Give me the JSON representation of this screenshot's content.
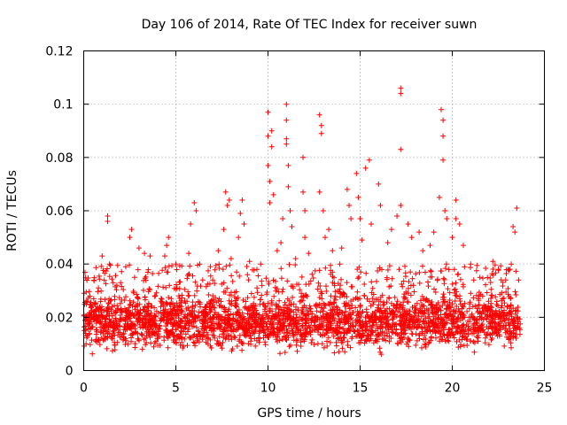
{
  "chart_data": {
    "type": "scatter",
    "title": "Day 106 of 2014, Rate Of TEC Index for receiver suwn",
    "xlabel": "GPS time / hours",
    "ylabel": "ROTI / TECUs",
    "xlim": [
      0,
      25
    ],
    "ylim": [
      0,
      0.12
    ],
    "xticks": [
      0,
      5,
      10,
      15,
      20,
      25
    ],
    "xtick_labels": [
      "0",
      "5",
      "10",
      "15",
      "20",
      "25"
    ],
    "yticks": [
      0,
      0.02,
      0.04,
      0.06,
      0.08,
      0.1,
      0.12
    ],
    "ytick_labels": [
      "0",
      "0.02",
      "0.04",
      "0.06",
      "0.08",
      "0.1",
      "0.12"
    ],
    "grid": true,
    "marker": "+",
    "color": "#ff0000",
    "series": [
      {
        "name": "ROTI",
        "x_range": [
          0,
          23.7
        ],
        "baseline_range": [
          0.005,
          0.03
        ],
        "notable_points": [
          {
            "x": 0.2,
            "y": 0.026
          },
          {
            "x": 0.8,
            "y": 0.031
          },
          {
            "x": 1.0,
            "y": 0.043
          },
          {
            "x": 1.3,
            "y": 0.058
          },
          {
            "x": 1.3,
            "y": 0.056
          },
          {
            "x": 1.4,
            "y": 0.04
          },
          {
            "x": 2.0,
            "y": 0.033
          },
          {
            "x": 2.5,
            "y": 0.05
          },
          {
            "x": 2.6,
            "y": 0.053
          },
          {
            "x": 3.0,
            "y": 0.046
          },
          {
            "x": 3.3,
            "y": 0.044
          },
          {
            "x": 3.6,
            "y": 0.043
          },
          {
            "x": 4.4,
            "y": 0.043
          },
          {
            "x": 4.5,
            "y": 0.037
          },
          {
            "x": 4.5,
            "y": 0.047
          },
          {
            "x": 4.6,
            "y": 0.05
          },
          {
            "x": 5.0,
            "y": 0.04
          },
          {
            "x": 5.7,
            "y": 0.044
          },
          {
            "x": 5.8,
            "y": 0.055
          },
          {
            "x": 6.0,
            "y": 0.063
          },
          {
            "x": 6.1,
            "y": 0.06
          },
          {
            "x": 6.3,
            "y": 0.04
          },
          {
            "x": 7.0,
            "y": 0.034
          },
          {
            "x": 7.3,
            "y": 0.045
          },
          {
            "x": 7.6,
            "y": 0.053
          },
          {
            "x": 7.7,
            "y": 0.067
          },
          {
            "x": 7.8,
            "y": 0.062
          },
          {
            "x": 7.9,
            "y": 0.064
          },
          {
            "x": 8.0,
            "y": 0.042
          },
          {
            "x": 8.3,
            "y": 0.037
          },
          {
            "x": 8.4,
            "y": 0.05
          },
          {
            "x": 8.5,
            "y": 0.059
          },
          {
            "x": 8.6,
            "y": 0.064
          },
          {
            "x": 8.7,
            "y": 0.055
          },
          {
            "x": 9.0,
            "y": 0.041
          },
          {
            "x": 9.4,
            "y": 0.038
          },
          {
            "x": 9.6,
            "y": 0.04
          },
          {
            "x": 10.0,
            "y": 0.097
          },
          {
            "x": 10.0,
            "y": 0.088
          },
          {
            "x": 10.0,
            "y": 0.077
          },
          {
            "x": 10.1,
            "y": 0.071
          },
          {
            "x": 10.1,
            "y": 0.063
          },
          {
            "x": 10.2,
            "y": 0.09
          },
          {
            "x": 10.2,
            "y": 0.084
          },
          {
            "x": 10.3,
            "y": 0.066
          },
          {
            "x": 10.5,
            "y": 0.045
          },
          {
            "x": 10.7,
            "y": 0.048
          },
          {
            "x": 10.8,
            "y": 0.057
          },
          {
            "x": 11.0,
            "y": 0.1
          },
          {
            "x": 11.0,
            "y": 0.094
          },
          {
            "x": 11.0,
            "y": 0.087
          },
          {
            "x": 11.0,
            "y": 0.085
          },
          {
            "x": 11.1,
            "y": 0.077
          },
          {
            "x": 11.1,
            "y": 0.069
          },
          {
            "x": 11.2,
            "y": 0.06
          },
          {
            "x": 11.3,
            "y": 0.054
          },
          {
            "x": 11.5,
            "y": 0.042
          },
          {
            "x": 11.9,
            "y": 0.08
          },
          {
            "x": 11.9,
            "y": 0.067
          },
          {
            "x": 12.0,
            "y": 0.06
          },
          {
            "x": 12.0,
            "y": 0.05
          },
          {
            "x": 12.2,
            "y": 0.044
          },
          {
            "x": 12.8,
            "y": 0.096
          },
          {
            "x": 12.9,
            "y": 0.092
          },
          {
            "x": 12.9,
            "y": 0.089
          },
          {
            "x": 12.8,
            "y": 0.067
          },
          {
            "x": 13.0,
            "y": 0.06
          },
          {
            "x": 13.1,
            "y": 0.05
          },
          {
            "x": 13.3,
            "y": 0.053
          },
          {
            "x": 13.5,
            "y": 0.045
          },
          {
            "x": 13.9,
            "y": 0.04
          },
          {
            "x": 14.0,
            "y": 0.046
          },
          {
            "x": 14.3,
            "y": 0.068
          },
          {
            "x": 14.4,
            "y": 0.062
          },
          {
            "x": 14.5,
            "y": 0.057
          },
          {
            "x": 14.8,
            "y": 0.074
          },
          {
            "x": 14.9,
            "y": 0.065
          },
          {
            "x": 15.0,
            "y": 0.057
          },
          {
            "x": 15.1,
            "y": 0.049
          },
          {
            "x": 15.3,
            "y": 0.076
          },
          {
            "x": 15.5,
            "y": 0.079
          },
          {
            "x": 15.6,
            "y": 0.055
          },
          {
            "x": 16.0,
            "y": 0.07
          },
          {
            "x": 16.1,
            "y": 0.062
          },
          {
            "x": 16.5,
            "y": 0.048
          },
          {
            "x": 16.7,
            "y": 0.053
          },
          {
            "x": 17.0,
            "y": 0.058
          },
          {
            "x": 17.2,
            "y": 0.106
          },
          {
            "x": 17.2,
            "y": 0.104
          },
          {
            "x": 17.2,
            "y": 0.083
          },
          {
            "x": 17.2,
            "y": 0.062
          },
          {
            "x": 17.6,
            "y": 0.055
          },
          {
            "x": 17.8,
            "y": 0.05
          },
          {
            "x": 18.2,
            "y": 0.052
          },
          {
            "x": 18.4,
            "y": 0.045
          },
          {
            "x": 18.8,
            "y": 0.047
          },
          {
            "x": 19.0,
            "y": 0.052
          },
          {
            "x": 19.3,
            "y": 0.065
          },
          {
            "x": 19.4,
            "y": 0.098
          },
          {
            "x": 19.5,
            "y": 0.094
          },
          {
            "x": 19.5,
            "y": 0.088
          },
          {
            "x": 19.5,
            "y": 0.079
          },
          {
            "x": 19.6,
            "y": 0.06
          },
          {
            "x": 19.7,
            "y": 0.057
          },
          {
            "x": 20.0,
            "y": 0.05
          },
          {
            "x": 20.2,
            "y": 0.064
          },
          {
            "x": 20.2,
            "y": 0.057
          },
          {
            "x": 20.4,
            "y": 0.055
          },
          {
            "x": 20.6,
            "y": 0.047
          },
          {
            "x": 21.0,
            "y": 0.04
          },
          {
            "x": 21.5,
            "y": 0.035
          },
          {
            "x": 22.2,
            "y": 0.041
          },
          {
            "x": 22.5,
            "y": 0.038
          },
          {
            "x": 22.9,
            "y": 0.034
          },
          {
            "x": 23.2,
            "y": 0.04
          },
          {
            "x": 23.3,
            "y": 0.054
          },
          {
            "x": 23.4,
            "y": 0.052
          },
          {
            "x": 23.5,
            "y": 0.061
          },
          {
            "x": 23.6,
            "y": 0.034
          }
        ]
      }
    ]
  }
}
